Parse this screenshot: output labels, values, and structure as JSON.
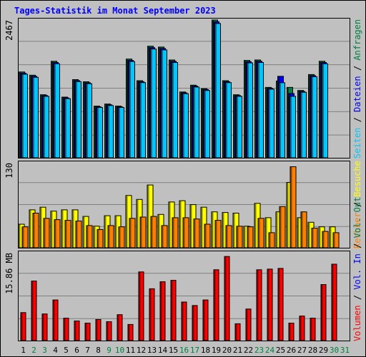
{
  "chart_data": {
    "type": "bar",
    "title": "Tages-Statistik im Monat September 2023",
    "categories": [
      "1",
      "2",
      "3",
      "4",
      "5",
      "6",
      "7",
      "8",
      "9",
      "10",
      "11",
      "12",
      "13",
      "14",
      "15",
      "16",
      "17",
      "18",
      "19",
      "20",
      "21",
      "22",
      "23",
      "24",
      "25",
      "26",
      "27",
      "28",
      "29",
      "30",
      "31"
    ],
    "weekend_days": [
      "2",
      "3",
      "9",
      "10",
      "16",
      "17",
      "23",
      "24",
      "30",
      "31"
    ],
    "panels": [
      {
        "name": "Anfragen / Dateien / Seiten",
        "ymax": 2467,
        "ymax_label": "2467",
        "side_labels": [
          {
            "text": "Seiten",
            "color": "#00c8ff"
          },
          {
            "text": "Dateien",
            "color": "#0000ff"
          },
          {
            "text": "Anfragen",
            "color": "#008040"
          }
        ],
        "series": [
          {
            "name": "Anfragen",
            "color": "#008040",
            "values": [
              1536,
              1479,
              1129,
              1728,
              1086,
              1400,
              1361,
              925,
              962,
              925,
              1768,
              1381,
              1998,
              1983,
              1751,
              1178,
              1300,
              1238,
              2467,
              1381,
              1129,
              1744,
              1751,
              1260,
              1376,
              1260,
              1205,
              1491,
              1728,
              0,
              0
            ]
          },
          {
            "name": "Dateien",
            "color": "#0000ff",
            "values": [
              1516,
              1460,
              1114,
              1706,
              1072,
              1382,
              1344,
              913,
              949,
              913,
              1745,
              1363,
              1972,
              1957,
              1728,
              1163,
              1283,
              1222,
              2435,
              1363,
              1114,
              1721,
              1728,
              1244,
              1458,
              1151,
              1189,
              1471,
              1706,
              0,
              0
            ]
          },
          {
            "name": "Seiten",
            "color": "#00c8ff",
            "values": [
              1496,
              1441,
              1100,
              1684,
              1058,
              1364,
              1327,
              901,
              936,
              901,
              1723,
              1346,
              1947,
              1932,
              1706,
              1148,
              1267,
              1206,
              2404,
              1346,
              1100,
              1699,
              1706,
              1228,
              1343,
              1100,
              1174,
              1452,
              1684,
              0,
              0
            ]
          }
        ]
      },
      {
        "name": "Besuche / Rechner",
        "ymax": 130,
        "ymax_label": "130",
        "side_labels": [
          {
            "text": "Rechner",
            "color": "#ff8000"
          },
          {
            "text": "Besuche",
            "color": "#ffff00"
          }
        ],
        "series": [
          {
            "name": "Besuche",
            "color": "#ffff00",
            "values": [
              36,
              58,
              62,
              56,
              58,
              58,
              48,
              33,
              49,
              49,
              80,
              74,
              96,
              51,
              70,
              72,
              66,
              62,
              55,
              54,
              53,
              33,
              68,
              46,
              55,
              100,
              46,
              39,
              32,
              32,
              0
            ]
          },
          {
            "name": "Rechner",
            "color": "#ff8000",
            "values": [
              32,
              53,
              45,
              43,
              42,
              41,
              34,
              28,
              34,
              32,
              45,
              47,
              48,
              34,
              46,
              46,
              44,
              36,
              42,
              34,
              33,
              32,
              45,
              23,
              63,
              124,
              55,
              30,
              25,
              23,
              0
            ]
          }
        ]
      },
      {
        "name": "Volumen / Vol. In / Vol. Out",
        "ymax": 15.86,
        "ymax_label": "15.86 MB",
        "side_labels": [
          {
            "text": "Volumen",
            "color": "#ff0000"
          },
          {
            "text": "Vol. In",
            "color": "#0000ff"
          },
          {
            "text": "Vol. Out",
            "color": "#008040"
          }
        ],
        "series": [
          {
            "name": "Volumen",
            "color": "#ff0000",
            "values": [
              5.06,
              10.76,
              4.81,
              7.34,
              4.05,
              3.54,
              3.16,
              3.8,
              3.42,
              4.68,
              2.91,
              12.41,
              9.36,
              10.63,
              10.88,
              6.96,
              6.33,
              7.34,
              12.79,
              15.19,
              3.04,
              5.7,
              12.79,
              12.91,
              13.04,
              3.16,
              4.43,
              4.05,
              10.12,
              13.8,
              0
            ]
          }
        ]
      }
    ]
  }
}
